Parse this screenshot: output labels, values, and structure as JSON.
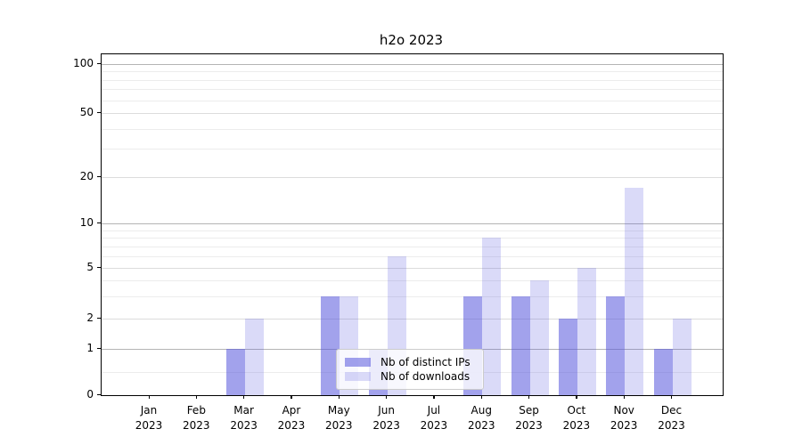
{
  "title": "h2o 2023",
  "legend": {
    "items": [
      {
        "label": "Nb of distinct IPs",
        "series_key": "ips"
      },
      {
        "label": "Nb of downloads",
        "series_key": "downloads"
      }
    ]
  },
  "colors": {
    "ips_bar": "rgba(85,85,221,0.55)",
    "downloads_bar": "rgba(85,85,221,0.22)",
    "grid_major": "#b4b4b4",
    "grid_mid": "#dcdcdc",
    "grid_minor": "#ececec",
    "axis": "#000000"
  },
  "chart_data": {
    "type": "bar",
    "title": "h2o 2023",
    "categories": [
      "Jan",
      "Feb",
      "Mar",
      "Apr",
      "May",
      "Jun",
      "Jul",
      "Aug",
      "Sep",
      "Oct",
      "Nov",
      "Dec"
    ],
    "year_label": "2023",
    "series": [
      {
        "name": "Nb of distinct IPs",
        "values": [
          0,
          0,
          1,
          0,
          3,
          1,
          0,
          3,
          3,
          2,
          3,
          1
        ]
      },
      {
        "name": "Nb of downloads",
        "values": [
          0,
          0,
          2,
          0,
          3,
          6,
          0,
          8,
          4,
          5,
          17,
          2
        ]
      }
    ],
    "yscale": "symlog",
    "ylim": [
      0,
      115
    ],
    "ytick_values": [
      0,
      1,
      2,
      5,
      10,
      20,
      50,
      100
    ],
    "ytick_labels": [
      "0",
      "1",
      "2",
      "5",
      "10",
      "20",
      "50",
      "100"
    ],
    "grid": "horizontal",
    "gridline_values_major": [
      1,
      10,
      100
    ],
    "gridline_values_mid": [
      2,
      5,
      20,
      50
    ],
    "gridline_values_minor": [
      0.5,
      3,
      4,
      6,
      7,
      8,
      9,
      30,
      40,
      60,
      70,
      80,
      90
    ],
    "legend_position": "lower center"
  }
}
